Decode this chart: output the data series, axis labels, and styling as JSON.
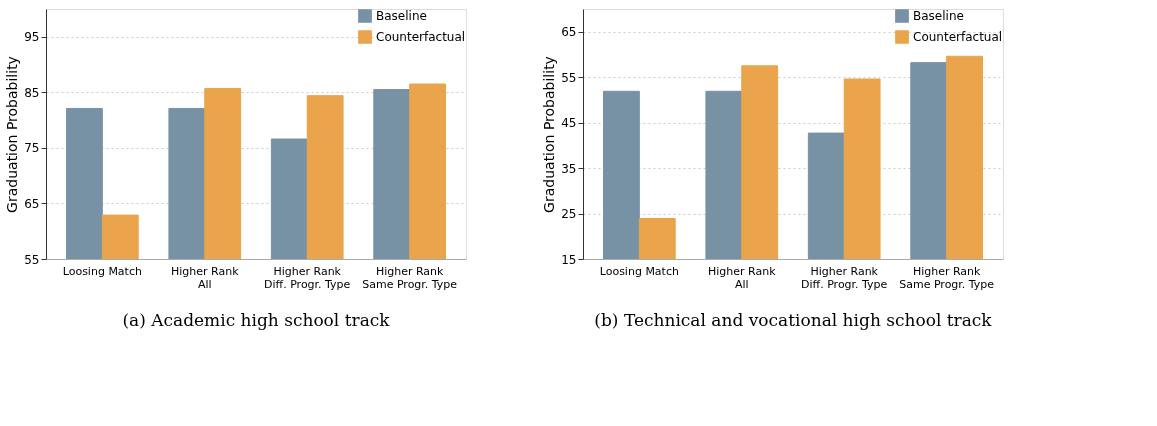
{
  "chart_data": [
    {
      "type": "bar",
      "title": "(a) Academic high school track",
      "ylabel": "Graduation Probability",
      "categories": [
        "Loosing Match",
        "Higher Rank\nAll",
        "Higher Rank\nDiff. Progr. Type",
        "Higher Rank\nSame Progr. Type"
      ],
      "series": [
        {
          "name": "Baseline",
          "color": "#7892a5",
          "values": [
            82.1,
            82.1,
            76.6,
            85.5
          ]
        },
        {
          "name": "Counterfactual",
          "color": "#e9a44c",
          "values": [
            62.9,
            85.7,
            84.4,
            86.5
          ]
        }
      ],
      "ylim": [
        55,
        100
      ],
      "yticks": [
        55,
        65,
        75,
        85,
        95
      ],
      "grid": "y",
      "legend": "top right"
    },
    {
      "type": "bar",
      "title": "(b) Technical and vocational high school track",
      "ylabel": "Graduation Probability",
      "categories": [
        "Loosing Match",
        "Higher Rank\nAll",
        "Higher Rank\nDiff. Progr. Type",
        "Higher Rank\nSame Progr. Type"
      ],
      "series": [
        {
          "name": "Baseline",
          "color": "#7892a5",
          "values": [
            51.9,
            51.9,
            42.7,
            58.2
          ]
        },
        {
          "name": "Counterfactual",
          "color": "#e9a44c",
          "values": [
            23.9,
            57.5,
            54.6,
            59.6
          ]
        }
      ],
      "ylim": [
        15,
        70
      ],
      "yticks": [
        15,
        25,
        35,
        45,
        55,
        65
      ],
      "grid": "y",
      "legend": "top right"
    }
  ]
}
